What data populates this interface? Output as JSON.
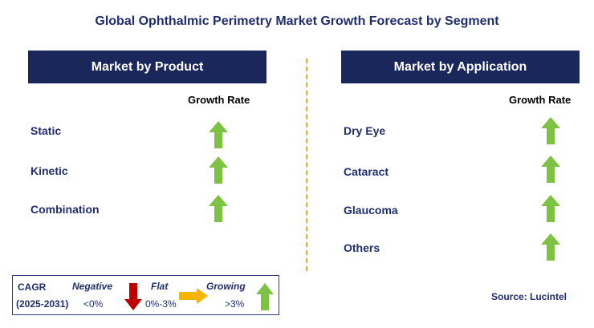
{
  "title": "Global Ophthalmic Perimetry Market Growth Forecast by Segment",
  "left_panel": {
    "header": "Market by Product",
    "growth_rate_label": "Growth Rate",
    "items": [
      {
        "label": "Static",
        "trend": "growing"
      },
      {
        "label": "Kinetic",
        "trend": "growing"
      },
      {
        "label": "Combination",
        "trend": "growing"
      }
    ]
  },
  "right_panel": {
    "header": "Market by Application",
    "growth_rate_label": "Growth Rate",
    "items": [
      {
        "label": "Dry Eye",
        "trend": "growing"
      },
      {
        "label": "Cataract",
        "trend": "growing"
      },
      {
        "label": "Glaucoma",
        "trend": "growing"
      },
      {
        "label": "Others",
        "trend": "growing"
      }
    ]
  },
  "legend": {
    "cagr_label": "CAGR",
    "period": "(2025-2031)",
    "negative_label": "Negative",
    "negative_range": "<0%",
    "flat_label": "Flat",
    "flat_range": "0%-3%",
    "growing_label": "Growing",
    "growing_range": ">3%"
  },
  "source": "Source: Lucintel",
  "colors": {
    "header_bg": "#19275a",
    "title_text": "#1f2d6e",
    "growing_arrow": "#7dc242",
    "negative_arrow": "#c00000",
    "flat_arrow": "#f5b400",
    "divider": "#f0a830"
  }
}
